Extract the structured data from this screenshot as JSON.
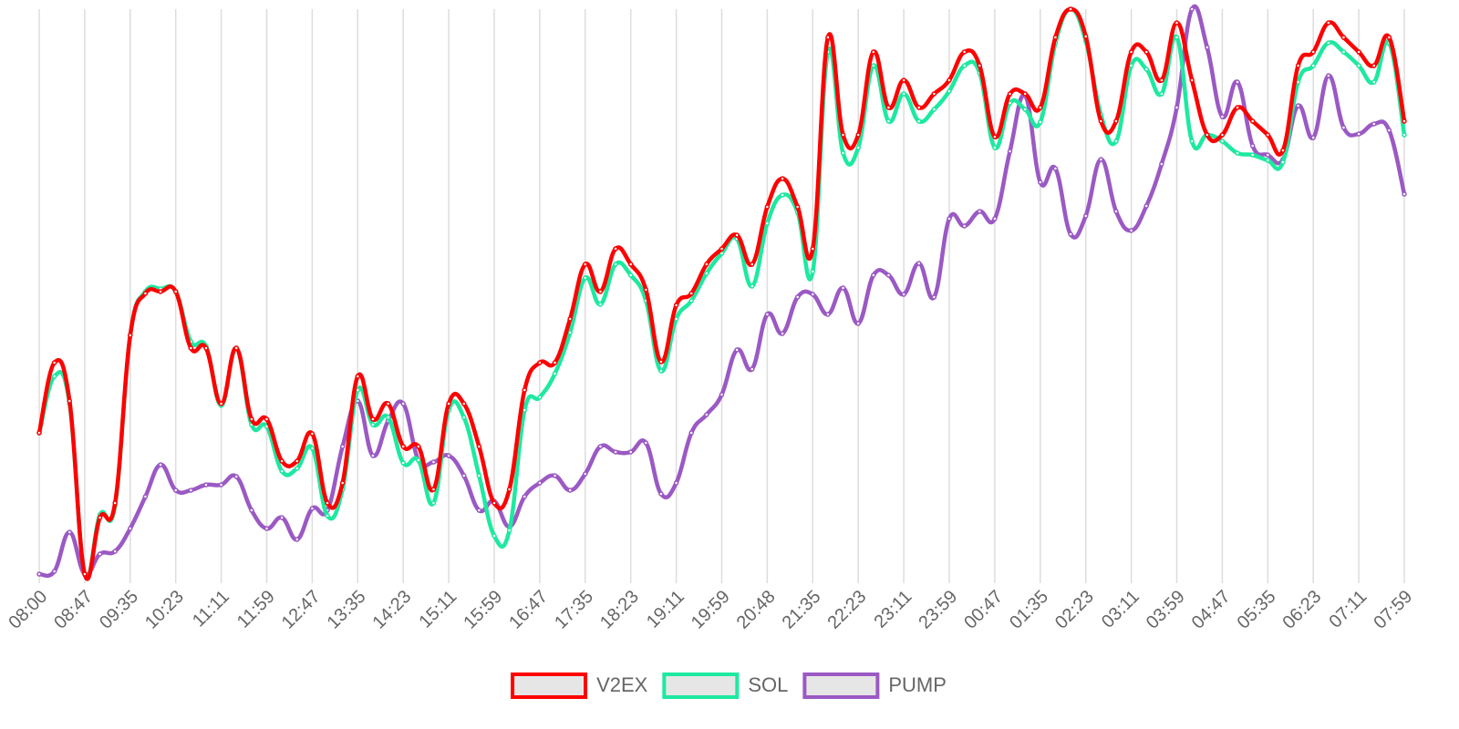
{
  "chart_data": {
    "type": "line",
    "categories": [
      "08:00",
      null,
      null,
      "08:47",
      null,
      null,
      "09:35",
      null,
      null,
      "10:23",
      null,
      null,
      "11:11",
      null,
      null,
      "11:59",
      null,
      null,
      "12:47",
      null,
      null,
      "13:35",
      null,
      null,
      "14:23",
      null,
      null,
      "15:11",
      null,
      null,
      "15:59",
      null,
      null,
      "16:47",
      null,
      null,
      "17:35",
      null,
      null,
      "18:23",
      null,
      null,
      "19:11",
      null,
      null,
      "19:59",
      null,
      null,
      "20:48",
      null,
      null,
      "21:35",
      null,
      null,
      "22:23",
      null,
      null,
      "23:11",
      null,
      null,
      "23:59",
      null,
      null,
      "00:47",
      null,
      null,
      "01:35",
      null,
      null,
      "02:23",
      null,
      null,
      "03:11",
      null,
      null,
      "03:59",
      null,
      null,
      "04:47",
      null,
      null,
      "05:35",
      null,
      null,
      "06:23",
      null,
      null,
      "07:11",
      null,
      null,
      "07:59"
    ],
    "ylim": [
      0,
      620
    ],
    "grid": true,
    "series": [
      {
        "name": "V2EX",
        "color": "#ff0000",
        "values": [
          155,
          232,
          190,
          0,
          62,
          78,
          262,
          308,
          310,
          310,
          248,
          248,
          187,
          248,
          170,
          170,
          124,
          124,
          154,
          78,
          100,
          217,
          170,
          187,
          140,
          140,
          93,
          187,
          187,
          140,
          78,
          93,
          202,
          232,
          232,
          280,
          340,
          310,
          357,
          340,
          312,
          233,
          295,
          308,
          340,
          357,
          372,
          340,
          403,
          434,
          403,
          357,
          589,
          482,
          482,
          573,
          512,
          542,
          512,
          527,
          542,
          573,
          558,
          480,
          527,
          527,
          512,
          589,
          620,
          590,
          497,
          497,
          573,
          573,
          542,
          605,
          542,
          482,
          482,
          512,
          497,
          482,
          465,
          558,
          573,
          605,
          589,
          573,
          558,
          589,
          497
        ]
      },
      {
        "name": "SOL",
        "color": "#1de9a0",
        "values": [
          155,
          217,
          187,
          0,
          65,
          75,
          262,
          310,
          313,
          310,
          255,
          250,
          185,
          248,
          164,
          162,
          113,
          116,
          138,
          64,
          93,
          202,
          164,
          172,
          122,
          125,
          78,
          180,
          172,
          108,
          42,
          48,
          180,
          194,
          220,
          265,
          325,
          296,
          340,
          328,
          300,
          223,
          280,
          300,
          330,
          352,
          368,
          316,
          385,
          416,
          397,
          332,
          573,
          462,
          468,
          558,
          497,
          527,
          497,
          510,
          530,
          558,
          550,
          468,
          517,
          510,
          496,
          583,
          620,
          585,
          504,
          475,
          558,
          554,
          527,
          589,
          475,
          482,
          475,
          462,
          460,
          454,
          452,
          540,
          558,
          583,
          573,
          558,
          540,
          583,
          482
        ]
      },
      {
        "name": "PUMP",
        "color": "#9b59c4",
        "values": [
          0,
          3,
          46,
          0,
          22,
          25,
          50,
          85,
          120,
          92,
          92,
          98,
          98,
          107,
          70,
          50,
          62,
          38,
          72,
          70,
          140,
          190,
          130,
          168,
          187,
          125,
          123,
          130,
          108,
          70,
          80,
          52,
          85,
          100,
          108,
          92,
          110,
          140,
          134,
          134,
          144,
          88,
          100,
          155,
          175,
          197,
          246,
          225,
          285,
          264,
          304,
          307,
          285,
          314,
          275,
          328,
          328,
          307,
          341,
          304,
          390,
          382,
          398,
          390,
          464,
          525,
          430,
          445,
          373,
          393,
          455,
          398,
          377,
          404,
          450,
          512,
          620,
          578,
          502,
          540,
          470,
          460,
          455,
          514,
          479,
          547,
          490,
          483,
          494,
          487,
          417
        ]
      }
    ]
  }
}
